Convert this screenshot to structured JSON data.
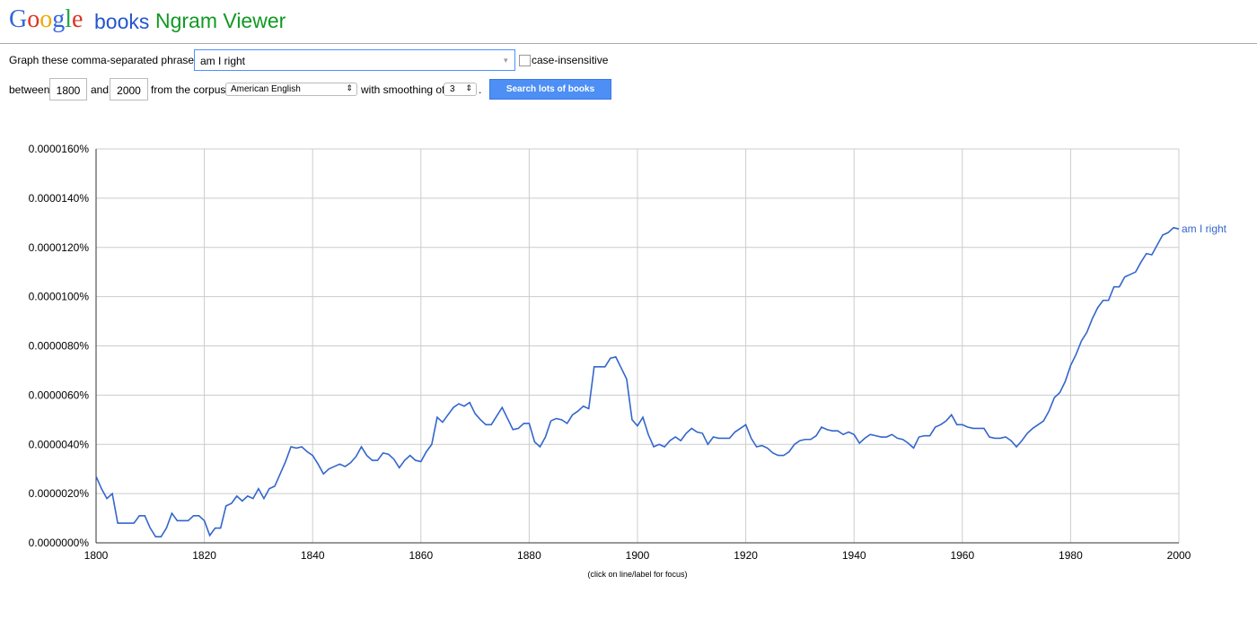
{
  "header": {
    "logo": "Google",
    "product": "books",
    "title": "Ngram Viewer"
  },
  "form": {
    "phrases_label": "Graph these comma-separated phrases:",
    "phrases": "am I right",
    "case_label": "case-insensitive",
    "between_label": "between",
    "start": "1800",
    "and_label": "and",
    "end": "2000",
    "corpus_label": "from the corpus",
    "corpus": "American English",
    "smoothing_label": "with smoothing of",
    "smoothing": "3",
    "period": ".",
    "button": "Search lots of books"
  },
  "chart_data": {
    "type": "line",
    "note": "(click on line/label for focus)",
    "xlim": [
      1800,
      2000
    ],
    "xticks": [
      1800,
      1820,
      1840,
      1860,
      1880,
      1900,
      1920,
      1940,
      1960,
      1980,
      2000
    ],
    "ylim": [
      0,
      1.6e-05
    ],
    "yticks": [
      {
        "value": 0,
        "label": "0.0000000%"
      },
      {
        "value": 2e-06,
        "label": "0.0000020%"
      },
      {
        "value": 4e-06,
        "label": "0.0000040%"
      },
      {
        "value": 6e-06,
        "label": "0.0000060%"
      },
      {
        "value": 8e-06,
        "label": "0.0000080%"
      },
      {
        "value": 1e-05,
        "label": "0.0000100%"
      },
      {
        "value": 1.2e-05,
        "label": "0.0000120%"
      },
      {
        "value": 1.4e-05,
        "label": "0.0000140%"
      },
      {
        "value": 1.6e-05,
        "label": "0.0000160%"
      }
    ],
    "grid": true,
    "x": [
      1800,
      1801,
      1802,
      1803,
      1804,
      1805,
      1806,
      1807,
      1808,
      1809,
      1810,
      1811,
      1812,
      1813,
      1814,
      1815,
      1816,
      1817,
      1818,
      1819,
      1820,
      1821,
      1822,
      1823,
      1824,
      1825,
      1826,
      1827,
      1828,
      1829,
      1830,
      1831,
      1832,
      1833,
      1834,
      1835,
      1836,
      1837,
      1838,
      1839,
      1840,
      1841,
      1842,
      1843,
      1844,
      1845,
      1846,
      1847,
      1848,
      1849,
      1850,
      1851,
      1852,
      1853,
      1854,
      1855,
      1856,
      1857,
      1858,
      1859,
      1860,
      1861,
      1862,
      1863,
      1864,
      1865,
      1866,
      1867,
      1868,
      1869,
      1870,
      1871,
      1872,
      1873,
      1874,
      1875,
      1876,
      1877,
      1878,
      1879,
      1880,
      1881,
      1882,
      1883,
      1884,
      1885,
      1886,
      1887,
      1888,
      1889,
      1890,
      1891,
      1892,
      1893,
      1894,
      1895,
      1896,
      1897,
      1898,
      1899,
      1900,
      1901,
      1902,
      1903,
      1904,
      1905,
      1906,
      1907,
      1908,
      1909,
      1910,
      1911,
      1912,
      1913,
      1914,
      1915,
      1916,
      1917,
      1918,
      1919,
      1920,
      1921,
      1922,
      1923,
      1924,
      1925,
      1926,
      1927,
      1928,
      1929,
      1930,
      1931,
      1932,
      1933,
      1934,
      1935,
      1936,
      1937,
      1938,
      1939,
      1940,
      1941,
      1942,
      1943,
      1944,
      1945,
      1946,
      1947,
      1948,
      1949,
      1950,
      1951,
      1952,
      1953,
      1954,
      1955,
      1956,
      1957,
      1958,
      1959,
      1960,
      1961,
      1962,
      1963,
      1964,
      1965,
      1966,
      1967,
      1968,
      1969,
      1970,
      1971,
      1972,
      1973,
      1974,
      1975,
      1976,
      1977,
      1978,
      1979,
      1980,
      1981,
      1982,
      1983,
      1984,
      1985,
      1986,
      1987,
      1988,
      1989,
      1990,
      1991,
      1992,
      1993,
      1994,
      1995,
      1996,
      1997,
      1998,
      1999,
      2000
    ],
    "series": [
      {
        "name": "am I right",
        "color": "#3366cc",
        "values": [
          2.7e-06,
          2.2e-06,
          1.8e-06,
          2e-06,
          8e-07,
          8e-07,
          8e-07,
          8e-07,
          1.1e-06,
          1.1e-06,
          6e-07,
          2.5e-07,
          2.5e-07,
          6e-07,
          1.2e-06,
          9e-07,
          9e-07,
          9e-07,
          1.1e-06,
          1.1e-06,
          9e-07,
          3e-07,
          6e-07,
          6e-07,
          1.5e-06,
          1.6e-06,
          1.9e-06,
          1.7e-06,
          1.9e-06,
          1.8e-06,
          2.2e-06,
          1.8e-06,
          2.2e-06,
          2.3e-06,
          2.8e-06,
          3.3e-06,
          3.9e-06,
          3.85e-06,
          3.9e-06,
          3.7e-06,
          3.55e-06,
          3.2e-06,
          2.8e-06,
          3e-06,
          3.1e-06,
          3.2e-06,
          3.1e-06,
          3.25e-06,
          3.5e-06,
          3.9e-06,
          3.55e-06,
          3.35e-06,
          3.35e-06,
          3.65e-06,
          3.6e-06,
          3.4e-06,
          3.05e-06,
          3.35e-06,
          3.55e-06,
          3.35e-06,
          3.3e-06,
          3.7e-06,
          4e-06,
          5.1e-06,
          4.9e-06,
          5.2e-06,
          5.5e-06,
          5.65e-06,
          5.55e-06,
          5.7e-06,
          5.25e-06,
          5e-06,
          4.8e-06,
          4.8e-06,
          5.15e-06,
          5.5e-06,
          5.05e-06,
          4.6e-06,
          4.65e-06,
          4.85e-06,
          4.85e-06,
          4.1e-06,
          3.9e-06,
          4.3e-06,
          4.95e-06,
          5.05e-06,
          5e-06,
          4.85e-06,
          5.2e-06,
          5.35e-06,
          5.55e-06,
          5.45e-06,
          7.15e-06,
          7.15e-06,
          7.15e-06,
          7.5e-06,
          7.55e-06,
          7.1e-06,
          6.65e-06,
          5e-06,
          4.75e-06,
          5.1e-06,
          4.4e-06,
          3.9e-06,
          4e-06,
          3.9e-06,
          4.15e-06,
          4.3e-06,
          4.15e-06,
          4.45e-06,
          4.65e-06,
          4.5e-06,
          4.45e-06,
          4e-06,
          4.3e-06,
          4.25e-06,
          4.25e-06,
          4.25e-06,
          4.5e-06,
          4.65e-06,
          4.8e-06,
          4.25e-06,
          3.9e-06,
          3.95e-06,
          3.85e-06,
          3.65e-06,
          3.55e-06,
          3.55e-06,
          3.7e-06,
          4e-06,
          4.15e-06,
          4.2e-06,
          4.2e-06,
          4.35e-06,
          4.7e-06,
          4.6e-06,
          4.55e-06,
          4.55e-06,
          4.4e-06,
          4.5e-06,
          4.4e-06,
          4.05e-06,
          4.25e-06,
          4.4e-06,
          4.35e-06,
          4.3e-06,
          4.3e-06,
          4.4e-06,
          4.25e-06,
          4.2e-06,
          4.05e-06,
          3.85e-06,
          4.3e-06,
          4.35e-06,
          4.35e-06,
          4.7e-06,
          4.8e-06,
          4.95e-06,
          5.2e-06,
          4.8e-06,
          4.8e-06,
          4.7e-06,
          4.65e-06,
          4.65e-06,
          4.65e-06,
          4.3e-06,
          4.25e-06,
          4.25e-06,
          4.3e-06,
          4.15e-06,
          3.9e-06,
          4.15e-06,
          4.45e-06,
          4.65e-06,
          4.8e-06,
          4.95e-06,
          5.35e-06,
          5.9e-06,
          6.1e-06,
          6.55e-06,
          7.2e-06,
          7.65e-06,
          8.2e-06,
          8.55e-06,
          9.1e-06,
          9.55e-06,
          9.85e-06,
          9.85e-06,
          1.04e-05,
          1.04e-05,
          1.08e-05,
          1.09e-05,
          1.1e-05,
          1.14e-05,
          1.175e-05,
          1.17e-05,
          1.21e-05,
          1.25e-05,
          1.26e-05,
          1.28e-05,
          1.275e-05
        ]
      }
    ]
  }
}
